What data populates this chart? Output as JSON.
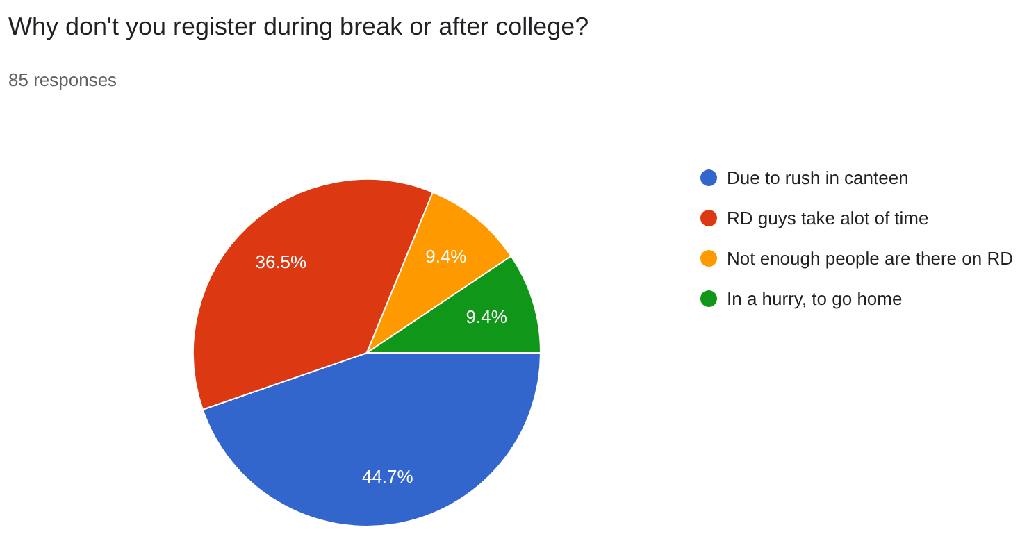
{
  "chart_data": {
    "type": "pie",
    "title": "Why don't you register during break or after college?",
    "subtitle": "85 responses",
    "categories": [
      "Due to rush in canteen",
      "RD guys take alot of time",
      "Not enough people are there on RD",
      "In a hurry, to go home"
    ],
    "values": [
      44.7,
      36.5,
      9.4,
      9.4
    ],
    "colors": [
      "#3366cc",
      "#dc3912",
      "#ff9900",
      "#109618"
    ],
    "value_labels": [
      "44.7%",
      "36.5%",
      "9.4%",
      "9.4%"
    ],
    "legend": "right"
  }
}
